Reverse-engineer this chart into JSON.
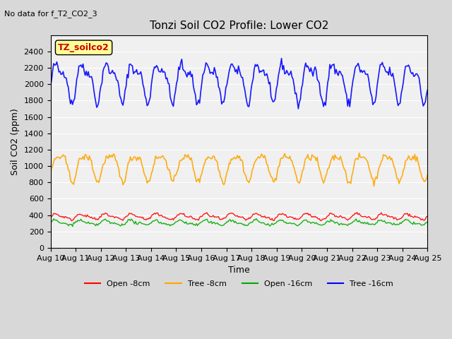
{
  "title": "Tonzi Soil CO2 Profile: Lower CO2",
  "subtitle": "No data for f_T2_CO2_3",
  "xlabel": "Time",
  "ylabel": "Soil CO2 (ppm)",
  "ylim": [
    0,
    2600
  ],
  "yticks": [
    0,
    200,
    400,
    600,
    800,
    1000,
    1200,
    1400,
    1600,
    1800,
    2000,
    2200,
    2400
  ],
  "legend_labels": [
    "Open -8cm",
    "Tree -8cm",
    "Open -16cm",
    "Tree -16cm"
  ],
  "legend_colors": [
    "#ff0000",
    "#ffa500",
    "#00aa00",
    "#0000ff"
  ],
  "inset_label": "TZ_soilco2",
  "inset_color": "#cc0000",
  "inset_bg": "#ffff99",
  "bg_color": "#e8e8e8",
  "plot_bg": "#f0f0f0",
  "xticklabels": [
    "Aug 10",
    "Aug 11",
    "Aug 12",
    "Aug 13",
    "Aug 14",
    "Aug 15",
    "Aug 16",
    "Aug 17",
    "Aug 18",
    "Aug 19",
    "Aug 20",
    "Aug 21",
    "Aug 22",
    "Aug 23",
    "Aug 24",
    "Aug 25"
  ],
  "n_points": 360,
  "open8_base": 380,
  "open8_amp": 30,
  "tree8_base": 1000,
  "tree8_amp": 150,
  "open16_base": 305,
  "open16_amp": 25,
  "tree16_base": 2050,
  "tree16_amp": 200
}
